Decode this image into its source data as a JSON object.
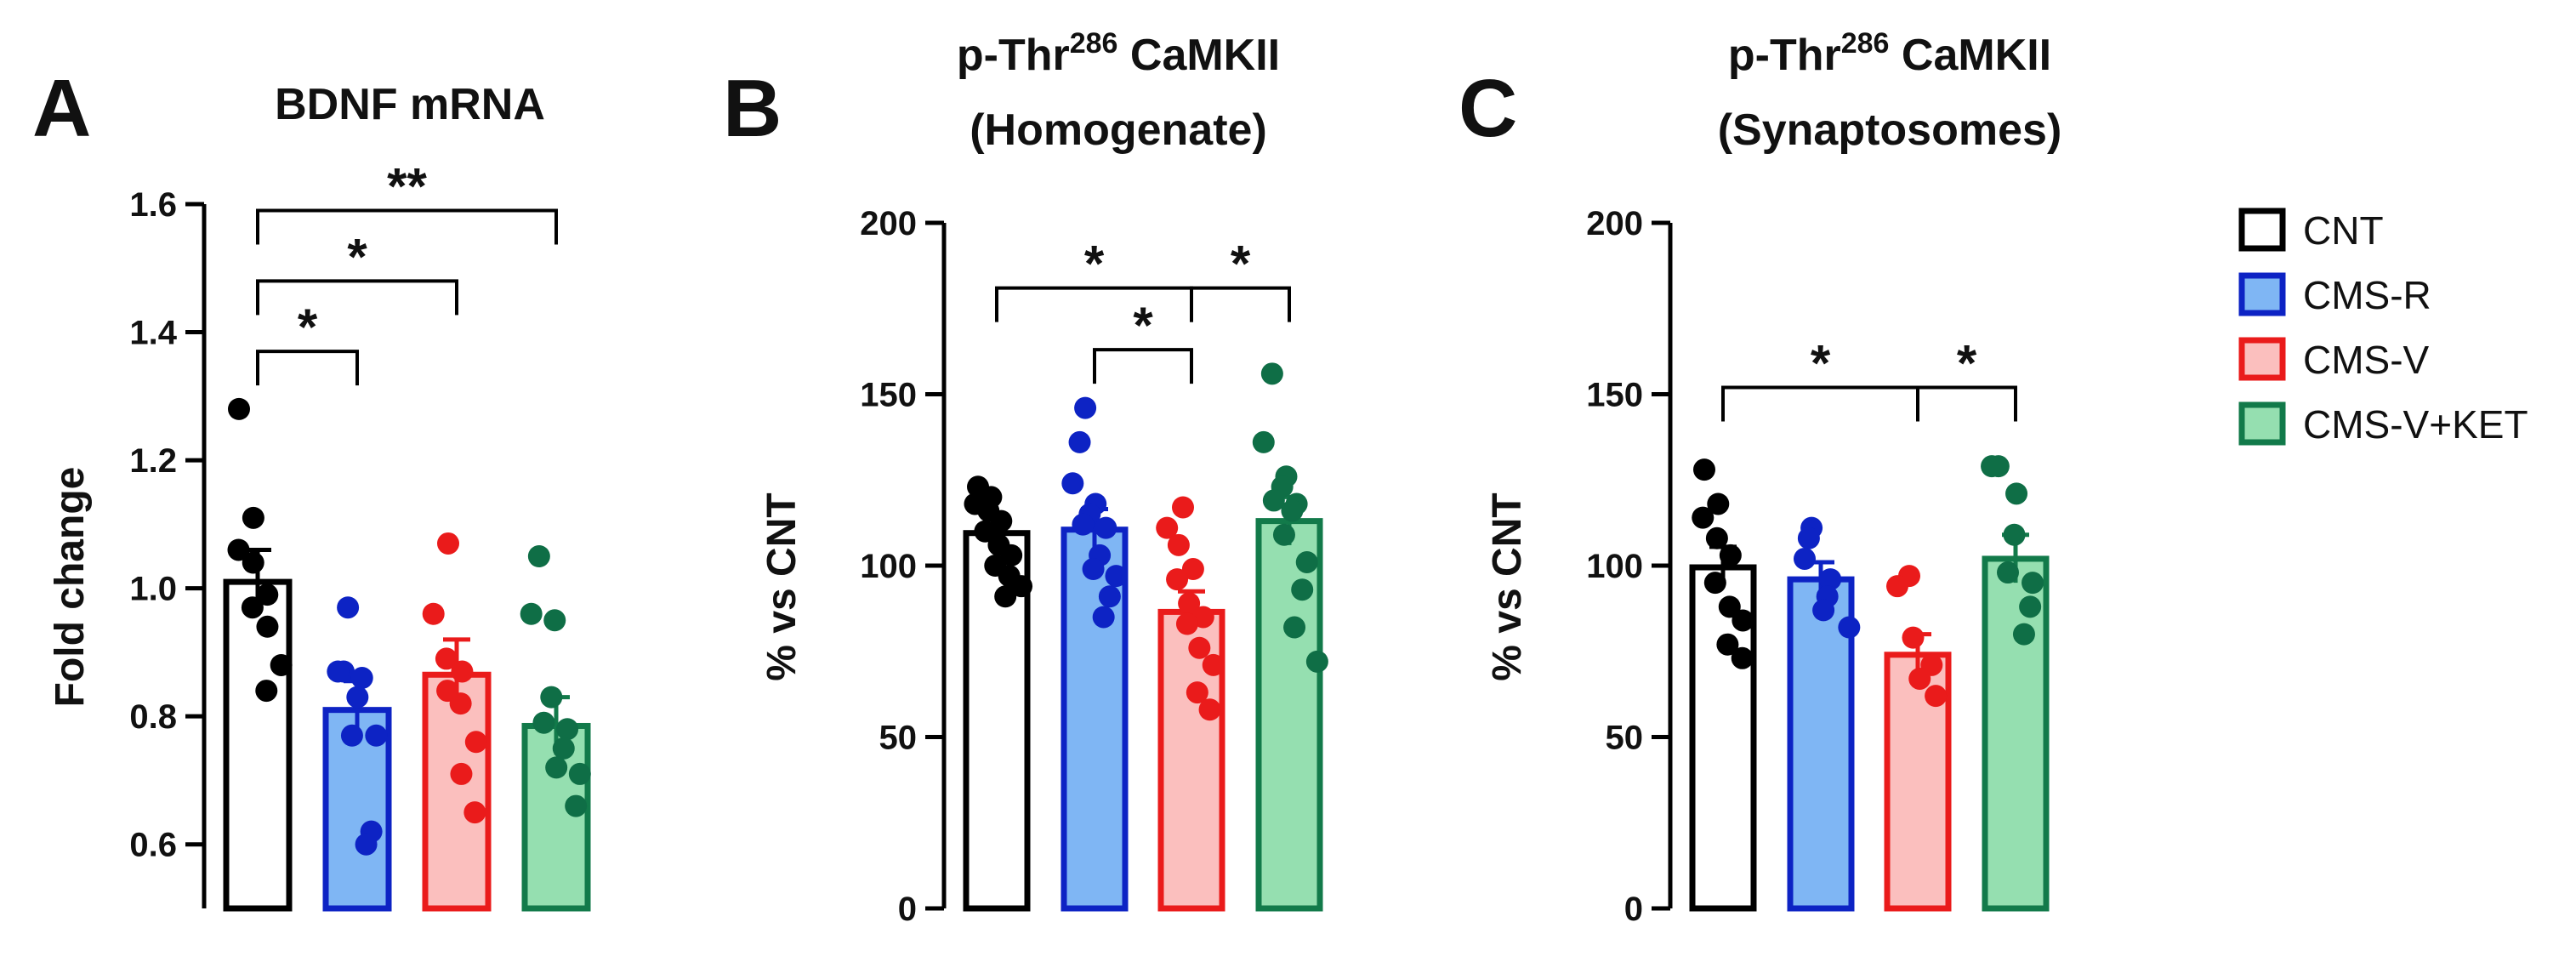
{
  "chart_data": [
    {
      "type": "bar",
      "panel_label": "A",
      "title": "BDNF mRNA",
      "ylabel": "Fold change",
      "xlabel": "",
      "ylim": [
        0.5,
        1.6
      ],
      "yticks": [
        0.6,
        0.8,
        1.0,
        1.2,
        1.4,
        1.6
      ],
      "ytick_labels": [
        "0.6",
        "0.8",
        "1.0",
        "1.2",
        "1.4",
        "1.6"
      ],
      "categories": [
        "CNT",
        "CMS-R",
        "CMS-V",
        "CMS-V+KET"
      ],
      "values": [
        1.01,
        0.81,
        0.865,
        0.785
      ],
      "sem": [
        0.05,
        0.045,
        0.055,
        0.045
      ],
      "points": [
        [
          1.28,
          1.11,
          1.06,
          1.04,
          0.99,
          0.97,
          0.94,
          0.88,
          0.84
        ],
        [
          0.97,
          0.87,
          0.87,
          0.86,
          0.83,
          0.77,
          0.77,
          0.62,
          0.6
        ],
        [
          1.07,
          0.96,
          0.89,
          0.87,
          0.84,
          0.82,
          0.76,
          0.71,
          0.65
        ],
        [
          1.05,
          0.96,
          0.95,
          0.83,
          0.79,
          0.78,
          0.75,
          0.72,
          0.71,
          0.66
        ]
      ],
      "significance": [
        {
          "from": 0,
          "to": 1,
          "label": "*",
          "y": 1.37
        },
        {
          "from": 0,
          "to": 2,
          "label": "*",
          "y": 1.48
        },
        {
          "from": 0,
          "to": 3,
          "label": "**",
          "y": 1.59
        }
      ]
    },
    {
      "type": "bar",
      "panel_label": "B",
      "title": "p-Thr286 CaMKII",
      "title_parts": [
        "p-Thr",
        "286",
        " CaMKII"
      ],
      "subtitle": "(Homogenate)",
      "ylabel": "% vs CNT",
      "xlabel": "",
      "ylim": [
        0,
        200
      ],
      "yticks": [
        0,
        50,
        100,
        150,
        200
      ],
      "ytick_labels": [
        "0",
        "50",
        "100",
        "150",
        "200"
      ],
      "categories": [
        "CNT",
        "CMS-R",
        "CMS-V",
        "CMS-V+KET"
      ],
      "values": [
        109.5,
        110.5,
        86.5,
        113
      ],
      "sem": [
        4,
        6,
        6,
        7
      ],
      "points": [
        [
          123,
          120,
          118,
          116,
          113,
          110,
          106,
          103,
          100,
          97,
          94,
          91
        ],
        [
          146,
          136,
          124,
          118,
          115,
          112,
          111,
          103,
          99,
          97,
          91,
          85
        ],
        [
          117,
          111,
          106,
          99,
          96,
          89,
          85,
          83,
          76,
          71,
          63,
          58
        ],
        [
          156,
          136,
          126,
          123,
          119,
          118,
          116,
          109,
          101,
          93,
          82,
          72
        ]
      ],
      "significance": [
        {
          "from": 0,
          "to": 2,
          "label": "*",
          "y": 181
        },
        {
          "from": 1,
          "to": 2,
          "label": "*",
          "y": 163
        },
        {
          "from": 2,
          "to": 3,
          "label": "*",
          "y": 181
        }
      ]
    },
    {
      "type": "bar",
      "panel_label": "C",
      "title": "p-Thr286 CaMKII",
      "title_parts": [
        "p-Thr",
        "286",
        " CaMKII"
      ],
      "subtitle": "(Synaptosomes)",
      "ylabel": "% vs CNT",
      "xlabel": "",
      "ylim": [
        0,
        200
      ],
      "yticks": [
        0,
        50,
        100,
        150,
        200
      ],
      "ytick_labels": [
        "0",
        "50",
        "100",
        "150",
        "200"
      ],
      "categories": [
        "CNT",
        "CMS-R",
        "CMS-V",
        "CMS-V+KET"
      ],
      "values": [
        99.5,
        96,
        74,
        102
      ],
      "sem": [
        6,
        5,
        6,
        7
      ],
      "points": [
        [
          128,
          118,
          114,
          108,
          103,
          95,
          88,
          84,
          77,
          73
        ],
        [
          111,
          108,
          102,
          96,
          91,
          87,
          82
        ],
        [
          97,
          94,
          79,
          71,
          67,
          62
        ],
        [
          129,
          129,
          121,
          109,
          98,
          95,
          88,
          80
        ]
      ],
      "significance": [
        {
          "from": 0,
          "to": 2,
          "label": "*",
          "y": 152
        },
        {
          "from": 2,
          "to": 3,
          "label": "*",
          "y": 152
        }
      ]
    }
  ],
  "legend": {
    "position": "right",
    "items": [
      {
        "label": "CNT",
        "fill": "#ffffff",
        "edge": "#000000",
        "dot": "#000000"
      },
      {
        "label": "CMS-R",
        "fill": "#7fb6f4",
        "edge": "#0d23c4",
        "dot": "#0d23c4"
      },
      {
        "label": "CMS-V",
        "fill": "#fbbfbe",
        "edge": "#ea1b1b",
        "dot": "#ea1b1b"
      },
      {
        "label": "CMS-V+KET",
        "fill": "#95dfb0",
        "edge": "#127a4a",
        "dot": "#0f6e46"
      }
    ]
  },
  "colors": {
    "axis": "#000000",
    "text": "#111111",
    "background": "#ffffff"
  }
}
